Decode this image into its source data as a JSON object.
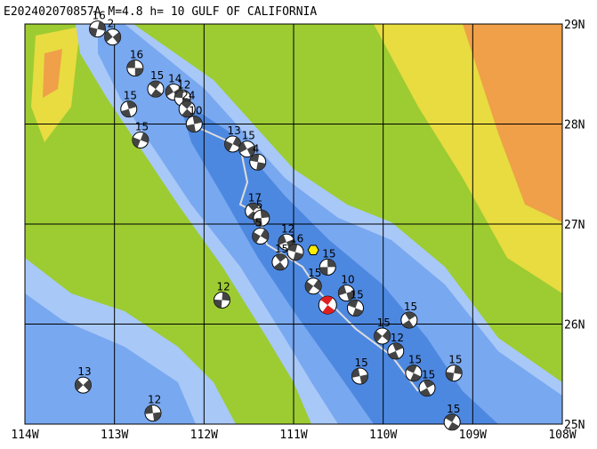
{
  "title": "E202402070857A M=4.8 h= 10 GULF OF CALIFORNIA",
  "map": {
    "lonlim": [
      -114,
      -108
    ],
    "latlim": [
      25,
      29
    ],
    "lonticks": [
      {
        "value": -114,
        "label": "114W"
      },
      {
        "value": -113,
        "label": "113W"
      },
      {
        "value": -112,
        "label": "112W"
      },
      {
        "value": -111,
        "label": "111W"
      },
      {
        "value": -110,
        "label": "110W"
      },
      {
        "value": -109,
        "label": "109W"
      },
      {
        "value": -108,
        "label": "108W"
      }
    ],
    "latticks": [
      {
        "value": 29,
        "label": "29N"
      },
      {
        "value": 28,
        "label": "28N"
      },
      {
        "value": 27,
        "label": "27N"
      },
      {
        "value": 26,
        "label": "26N"
      },
      {
        "value": 25,
        "label": "25N"
      }
    ],
    "main_event": {
      "lon": -110.62,
      "lat": 26.19,
      "color": "#e02020"
    },
    "marker": {
      "lon": -110.78,
      "lat": 26.74,
      "color": "#ffee00"
    },
    "events": [
      {
        "lon": -112.77,
        "lat": 28.56,
        "depth": 16
      },
      {
        "lon": -112.54,
        "lat": 28.35,
        "depth": 15
      },
      {
        "lon": -112.84,
        "lat": 28.15,
        "depth": 15
      },
      {
        "lon": -112.71,
        "lat": 27.84,
        "depth": 15
      },
      {
        "lon": -112.34,
        "lat": 28.32,
        "depth": 14
      },
      {
        "lon": -112.24,
        "lat": 28.26,
        "depth": 12
      },
      {
        "lon": -112.19,
        "lat": 28.15,
        "depth": 24
      },
      {
        "lon": -112.11,
        "lat": 28.0,
        "depth": 10
      },
      {
        "lon": -111.68,
        "lat": 27.8,
        "depth": 13
      },
      {
        "lon": -111.52,
        "lat": 27.75,
        "depth": 15
      },
      {
        "lon": -111.4,
        "lat": 27.62,
        "depth": 4
      },
      {
        "lon": -111.45,
        "lat": 27.13,
        "depth": 17
      },
      {
        "lon": -111.36,
        "lat": 27.06,
        "depth": 5
      },
      {
        "lon": -111.37,
        "lat": 26.88,
        "depth": 5
      },
      {
        "lon": -111.08,
        "lat": 26.82,
        "depth": 12
      },
      {
        "lon": -110.98,
        "lat": 26.72,
        "depth": 16
      },
      {
        "lon": -111.15,
        "lat": 26.62,
        "depth": 15
      },
      {
        "lon": -110.62,
        "lat": 26.57,
        "depth": 15
      },
      {
        "lon": -110.78,
        "lat": 26.38,
        "depth": 15
      },
      {
        "lon": -110.41,
        "lat": 26.31,
        "depth": 10
      },
      {
        "lon": -110.31,
        "lat": 26.16,
        "depth": 15
      },
      {
        "lon": -109.71,
        "lat": 26.04,
        "depth": 15
      },
      {
        "lon": -111.8,
        "lat": 26.24,
        "depth": 12
      },
      {
        "lon": -110.01,
        "lat": 25.88,
        "depth": 15
      },
      {
        "lon": -110.26,
        "lat": 25.48,
        "depth": 15
      },
      {
        "lon": -109.66,
        "lat": 25.51,
        "depth": 15
      },
      {
        "lon": -109.51,
        "lat": 25.36,
        "depth": 15
      },
      {
        "lon": -109.21,
        "lat": 25.51,
        "depth": 15
      },
      {
        "lon": -113.35,
        "lat": 25.39,
        "depth": 13
      },
      {
        "lon": -112.57,
        "lat": 25.11,
        "depth": 12
      },
      {
        "lon": -109.23,
        "lat": 25.02,
        "depth": 15
      },
      {
        "lon": -109.86,
        "lat": 25.73,
        "depth": 12
      },
      {
        "lon": -113.19,
        "lat": 28.95,
        "depth": 16
      },
      {
        "lon": -113.02,
        "lat": 28.87,
        "depth": 2
      }
    ]
  }
}
